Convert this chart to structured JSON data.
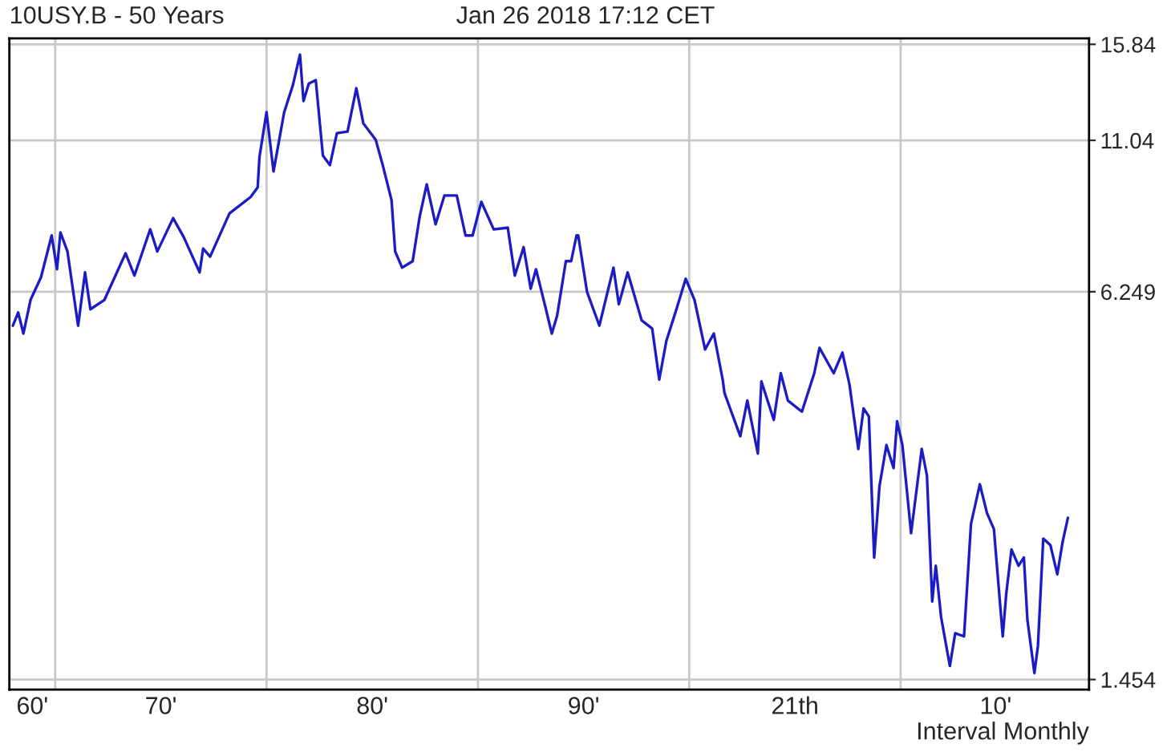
{
  "chart_data": {
    "type": "line",
    "title": "10USY.B - 50 Years",
    "subtitle": "Jan 26 2018 17:12 CET",
    "annotations": [
      "Interval Monthly"
    ],
    "x": [
      "1968-01",
      "1968-04",
      "1968-07",
      "1968-11",
      "1969-05",
      "1969-11",
      "1970-02",
      "1970-04",
      "1970-08",
      "1971-02",
      "1971-06",
      "1971-09",
      "1972-05",
      "1973-05",
      "1973-10",
      "1974-07",
      "1974-11",
      "1975-08",
      "1976-02",
      "1976-11",
      "1977-01",
      "1977-05",
      "1978-04",
      "1979-04",
      "1979-08",
      "1979-09",
      "1980-01",
      "1980-05",
      "1980-11",
      "1981-04",
      "1981-08",
      "1981-10",
      "1982-01",
      "1982-05",
      "1982-09",
      "1983-01",
      "1983-05",
      "1983-11",
      "1984-04",
      "1984-08",
      "1985-03",
      "1985-07",
      "1985-12",
      "1986-02",
      "1986-06",
      "1986-12",
      "1987-04",
      "1987-08",
      "1988-01",
      "1988-06",
      "1989-01",
      "1989-06",
      "1989-10",
      "1990-03",
      "1990-10",
      "1991-06",
      "1991-10",
      "1992-03",
      "1992-07",
      "1992-10",
      "1993-03",
      "1993-07",
      "1993-10",
      "1994-03",
      "1994-06",
      "1994-09",
      "1994-10",
      "1995-03",
      "1995-10",
      "1996-06",
      "1996-09",
      "1997-02",
      "1997-10",
      "1998-04",
      "1998-08",
      "1998-12",
      "1999-06",
      "1999-11",
      "2000-04",
      "2000-10",
      "2001-03",
      "2001-08",
      "2001-09",
      "2002-06",
      "2002-10",
      "2003-04",
      "2003-06",
      "2004-01",
      "2004-05",
      "2004-09",
      "2005-05",
      "2005-12",
      "2006-03",
      "2006-11",
      "2007-04",
      "2007-08",
      "2008-01",
      "2008-04",
      "2008-07",
      "2008-10",
      "2009-01",
      "2009-05",
      "2009-09",
      "2009-11",
      "2010-02",
      "2010-07",
      "2011-01",
      "2011-04",
      "2011-07",
      "2011-09",
      "2011-12",
      "2012-05",
      "2012-08",
      "2013-01",
      "2013-05",
      "2013-10",
      "2014-02",
      "2014-06",
      "2014-11",
      "2015-01",
      "2015-04",
      "2015-08",
      "2015-11",
      "2016-01",
      "2016-05",
      "2016-07",
      "2016-10",
      "2017-02",
      "2017-06",
      "2017-09",
      "2017-12"
    ],
    "series": [
      {
        "color": "#1c1cc4",
        "values": [
          5.5,
          5.78,
          5.34,
          6.06,
          6.6,
          7.72,
          6.8,
          7.81,
          7.27,
          5.5,
          6.72,
          5.85,
          6.06,
          7.22,
          6.64,
          7.9,
          7.27,
          8.24,
          7.67,
          6.72,
          7.35,
          7.13,
          8.39,
          8.92,
          9.25,
          10.37,
          12.27,
          9.82,
          12.27,
          13.59,
          15.24,
          12.8,
          13.67,
          13.84,
          10.43,
          10.06,
          11.34,
          11.41,
          13.43,
          11.76,
          11.07,
          10.06,
          8.81,
          7.27,
          6.84,
          7.01,
          8.29,
          9.36,
          8.05,
          8.97,
          8.97,
          7.72,
          7.72,
          8.76,
          7.9,
          7.95,
          6.64,
          7.39,
          6.32,
          6.8,
          5.96,
          5.34,
          5.71,
          7.01,
          7.01,
          7.72,
          7.72,
          6.249,
          5.5,
          6.84,
          5.96,
          6.72,
          5.61,
          5.44,
          4.49,
          5.19,
          5.88,
          6.56,
          6.06,
          5.03,
          5.34,
          4.49,
          4.27,
          3.63,
          4.15,
          3.4,
          4.46,
          3.86,
          4.6,
          4.15,
          3.98,
          4.6,
          5.06,
          4.6,
          4.97,
          4.41,
          3.46,
          4.03,
          3.91,
          2.3,
          3.01,
          3.51,
          3.22,
          3.84,
          3.51,
          2.52,
          3.46,
          3.13,
          1.95,
          2.23,
          1.84,
          1.53,
          1.73,
          1.71,
          2.61,
          3.03,
          2.72,
          2.56,
          1.71,
          2.01,
          2.37,
          2.23,
          2.3,
          1.82,
          1.49,
          1.65,
          2.47,
          2.41,
          2.16,
          2.44,
          2.67
        ]
      }
    ],
    "log": true,
    "xlim": [
      "1967-11",
      "2018-12"
    ],
    "xticks": [
      {
        "value": "1968-12",
        "label": "60'"
      },
      {
        "value": "1970-01",
        "label": null
      },
      {
        "value": "1975-01",
        "label": "70'"
      },
      {
        "value": "1980-01",
        "label": null
      },
      {
        "value": "1985-01",
        "label": "80'"
      },
      {
        "value": "1990-01",
        "label": null
      },
      {
        "value": "1995-01",
        "label": "90'"
      },
      {
        "value": "2000-01",
        "label": null
      },
      {
        "value": "2005-01",
        "label": "21th"
      },
      {
        "value": "2010-01",
        "label": null
      },
      {
        "value": "2014-07",
        "label": "10'"
      }
    ],
    "ylim": [
      1.4,
      16.2
    ],
    "yticks": [
      1.454,
      6.249,
      11.04,
      15.84
    ],
    "grid": true,
    "legend": false,
    "marker": "none",
    "line_style": "solid"
  }
}
